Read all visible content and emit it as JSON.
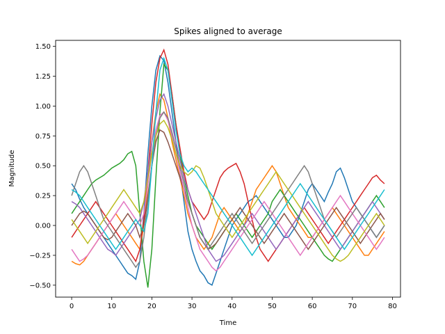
{
  "chart_data": {
    "type": "line",
    "title": "Spikes aligned to average",
    "xlabel": "Time",
    "ylabel": "Magnitude",
    "xlim": [
      -4,
      82
    ],
    "ylim": [
      -0.6,
      1.55
    ],
    "xticks": [
      0,
      10,
      20,
      30,
      40,
      50,
      60,
      70,
      80
    ],
    "xtick_labels": [
      "0",
      "10",
      "20",
      "30",
      "40",
      "50",
      "60",
      "70",
      "80"
    ],
    "yticks": [
      -0.5,
      -0.25,
      0.0,
      0.25,
      0.5,
      0.75,
      1.0,
      1.25,
      1.5
    ],
    "ytick_labels": [
      "−0.50",
      "−0.25",
      "0.00",
      "0.25",
      "0.50",
      "0.75",
      "1.00",
      "1.25",
      "1.50"
    ],
    "grid": false,
    "legend": "none",
    "x": [
      0,
      1,
      2,
      3,
      4,
      5,
      6,
      7,
      8,
      9,
      10,
      11,
      12,
      13,
      14,
      15,
      16,
      17,
      18,
      19,
      20,
      21,
      22,
      23,
      24,
      25,
      26,
      27,
      28,
      29,
      30,
      31,
      32,
      33,
      34,
      35,
      36,
      37,
      38,
      39,
      40,
      41,
      42,
      43,
      44,
      45,
      46,
      47,
      48,
      49,
      50,
      51,
      52,
      53,
      54,
      55,
      56,
      57,
      58,
      59,
      60,
      61,
      62,
      63,
      64,
      65,
      66,
      67,
      68,
      69,
      70,
      71,
      72,
      73,
      74,
      75,
      76,
      77,
      78
    ],
    "colors": [
      "#1f77b4",
      "#ff7f0e",
      "#2ca02c",
      "#d62728",
      "#9467bd",
      "#8c564b",
      "#e377c2",
      "#7f7f7f",
      "#bcbd22",
      "#17becf"
    ],
    "series": [
      {
        "values": [
          0.35,
          0.3,
          0.22,
          0.15,
          0.1,
          0.05,
          0.0,
          -0.05,
          -0.1,
          -0.15,
          -0.2,
          -0.25,
          -0.3,
          -0.35,
          -0.4,
          -0.42,
          -0.45,
          -0.3,
          0.1,
          0.6,
          1.0,
          1.3,
          1.42,
          1.38,
          1.2,
          0.95,
          0.7,
          0.45,
          0.2,
          -0.05,
          -0.2,
          -0.3,
          -0.38,
          -0.42,
          -0.48,
          -0.5,
          -0.4,
          -0.3,
          -0.2,
          -0.1,
          0.0,
          0.05,
          0.1,
          0.15,
          0.2,
          0.22,
          0.25,
          0.2,
          0.15,
          0.1,
          0.05,
          0.0,
          -0.05,
          -0.1,
          -0.1,
          -0.05,
          0.0,
          0.1,
          0.2,
          0.3,
          0.35,
          0.3,
          0.25,
          0.2,
          0.28,
          0.35,
          0.45,
          0.48,
          0.4,
          0.3,
          0.2,
          0.15,
          0.1,
          0.05,
          0.0,
          -0.05,
          -0.1,
          -0.05,
          0.0
        ]
      },
      {
        "values": [
          -0.3,
          -0.32,
          -0.33,
          -0.3,
          -0.25,
          -0.2,
          -0.15,
          -0.1,
          -0.05,
          0.0,
          0.05,
          0.1,
          0.05,
          0.0,
          -0.05,
          -0.1,
          -0.15,
          -0.2,
          0.0,
          0.35,
          0.7,
          0.95,
          1.1,
          1.05,
          0.9,
          0.7,
          0.55,
          0.4,
          0.25,
          0.1,
          0.0,
          -0.1,
          -0.15,
          -0.2,
          -0.15,
          -0.1,
          0.0,
          0.1,
          0.15,
          0.1,
          0.05,
          0.0,
          -0.05,
          0.0,
          0.1,
          0.2,
          0.3,
          0.35,
          0.4,
          0.45,
          0.5,
          0.45,
          0.35,
          0.25,
          0.15,
          0.1,
          0.05,
          0.0,
          -0.05,
          -0.1,
          -0.1,
          -0.05,
          0.0,
          0.05,
          0.1,
          0.15,
          0.1,
          0.05,
          0.0,
          -0.05,
          -0.1,
          -0.15,
          -0.2,
          -0.25,
          -0.25,
          -0.2,
          -0.15,
          -0.1,
          -0.05
        ]
      },
      {
        "values": [
          0.1,
          0.15,
          0.2,
          0.25,
          0.3,
          0.35,
          0.38,
          0.4,
          0.42,
          0.45,
          0.48,
          0.5,
          0.52,
          0.55,
          0.6,
          0.62,
          0.5,
          0.1,
          -0.3,
          -0.52,
          -0.2,
          0.4,
          0.95,
          1.35,
          1.3,
          1.1,
          0.85,
          0.6,
          0.4,
          0.25,
          0.1,
          0.0,
          -0.05,
          -0.1,
          -0.15,
          -0.2,
          -0.15,
          -0.1,
          -0.05,
          0.0,
          0.05,
          0.1,
          0.05,
          0.0,
          -0.05,
          -0.1,
          -0.05,
          0.0,
          0.05,
          0.1,
          0.2,
          0.25,
          0.3,
          0.25,
          0.2,
          0.15,
          0.1,
          0.05,
          0.0,
          -0.05,
          -0.1,
          -0.15,
          -0.2,
          -0.25,
          -0.28,
          -0.3,
          -0.25,
          -0.2,
          -0.15,
          -0.1,
          -0.05,
          0.0,
          0.05,
          0.1,
          0.15,
          0.2,
          0.25,
          0.2,
          0.15
        ]
      },
      {
        "values": [
          -0.1,
          -0.05,
          0.0,
          0.05,
          0.1,
          0.15,
          0.2,
          0.15,
          0.1,
          0.05,
          0.0,
          -0.05,
          -0.1,
          -0.15,
          -0.2,
          -0.25,
          -0.3,
          -0.2,
          0.05,
          0.45,
          0.85,
          1.2,
          1.4,
          1.47,
          1.35,
          1.1,
          0.85,
          0.65,
          0.45,
          0.3,
          0.2,
          0.15,
          0.1,
          0.05,
          0.1,
          0.2,
          0.3,
          0.4,
          0.45,
          0.48,
          0.5,
          0.52,
          0.45,
          0.35,
          0.2,
          0.05,
          -0.1,
          -0.2,
          -0.25,
          -0.3,
          -0.25,
          -0.2,
          -0.15,
          -0.1,
          -0.05,
          0.0,
          0.05,
          0.1,
          0.15,
          0.1,
          0.05,
          0.0,
          -0.05,
          -0.1,
          -0.15,
          -0.1,
          -0.05,
          0.0,
          0.05,
          0.1,
          0.15,
          0.2,
          0.25,
          0.3,
          0.35,
          0.4,
          0.42,
          0.38,
          0.35
        ]
      },
      {
        "values": [
          0.2,
          0.18,
          0.15,
          0.1,
          0.05,
          0.0,
          -0.05,
          -0.1,
          -0.15,
          -0.2,
          -0.22,
          -0.25,
          -0.2,
          -0.15,
          -0.1,
          -0.05,
          0.0,
          0.05,
          0.2,
          0.45,
          0.7,
          0.9,
          1.05,
          1.1,
          1.0,
          0.85,
          0.7,
          0.55,
          0.4,
          0.3,
          0.2,
          0.1,
          0.0,
          -0.1,
          -0.2,
          -0.25,
          -0.3,
          -0.28,
          -0.25,
          -0.2,
          -0.15,
          -0.1,
          -0.05,
          0.0,
          0.05,
          0.1,
          0.05,
          0.0,
          -0.05,
          -0.1,
          -0.15,
          -0.2,
          -0.15,
          -0.1,
          -0.05,
          0.0,
          0.05,
          0.1,
          0.15,
          0.2,
          0.15,
          0.1,
          0.05,
          0.0,
          -0.05,
          -0.1,
          -0.15,
          -0.2,
          -0.15,
          -0.1,
          -0.05,
          0.0,
          0.05,
          0.1,
          0.15,
          0.2,
          0.15,
          0.1,
          0.05
        ]
      },
      {
        "values": [
          0.0,
          0.05,
          0.1,
          0.12,
          0.1,
          0.05,
          0.0,
          -0.05,
          -0.1,
          -0.12,
          -0.1,
          -0.05,
          0.0,
          0.05,
          0.1,
          0.05,
          0.0,
          -0.1,
          0.0,
          0.25,
          0.5,
          0.7,
          0.8,
          0.78,
          0.7,
          0.6,
          0.5,
          0.4,
          0.3,
          0.2,
          0.1,
          0.0,
          -0.1,
          -0.15,
          -0.2,
          -0.18,
          -0.15,
          -0.1,
          -0.05,
          0.0,
          0.05,
          0.1,
          0.15,
          0.1,
          0.05,
          0.0,
          -0.05,
          -0.1,
          -0.15,
          -0.1,
          -0.05,
          0.0,
          0.05,
          0.1,
          0.05,
          0.0,
          -0.05,
          -0.1,
          -0.15,
          -0.2,
          -0.15,
          -0.1,
          -0.05,
          0.0,
          0.05,
          0.1,
          0.15,
          0.1,
          0.05,
          0.0,
          -0.05,
          -0.1,
          -0.15,
          -0.1,
          -0.05,
          0.0,
          0.05,
          0.1,
          0.05
        ]
      },
      {
        "values": [
          -0.2,
          -0.25,
          -0.3,
          -0.28,
          -0.25,
          -0.2,
          -0.15,
          -0.1,
          -0.05,
          0.0,
          0.05,
          0.1,
          0.15,
          0.2,
          0.15,
          0.1,
          0.05,
          0.0,
          0.1,
          0.35,
          0.6,
          0.8,
          0.92,
          0.95,
          0.88,
          0.75,
          0.6,
          0.45,
          0.3,
          0.15,
          0.0,
          -0.1,
          -0.2,
          -0.25,
          -0.3,
          -0.35,
          -0.38,
          -0.35,
          -0.3,
          -0.25,
          -0.2,
          -0.15,
          -0.1,
          -0.05,
          0.0,
          0.05,
          0.1,
          0.15,
          0.2,
          0.15,
          0.1,
          0.05,
          0.0,
          -0.05,
          -0.1,
          -0.15,
          -0.2,
          -0.25,
          -0.2,
          -0.15,
          -0.1,
          -0.05,
          0.0,
          0.05,
          0.1,
          0.15,
          0.2,
          0.25,
          0.2,
          0.15,
          0.1,
          0.05,
          0.0,
          -0.05,
          -0.1,
          -0.15,
          -0.2,
          -0.15,
          -0.1
        ]
      },
      {
        "values": [
          0.25,
          0.35,
          0.45,
          0.5,
          0.45,
          0.35,
          0.25,
          0.15,
          0.05,
          0.0,
          -0.05,
          -0.1,
          -0.15,
          -0.2,
          -0.25,
          -0.3,
          -0.35,
          -0.3,
          -0.1,
          0.2,
          0.5,
          0.75,
          0.9,
          0.95,
          0.9,
          0.78,
          0.65,
          0.5,
          0.35,
          0.2,
          0.1,
          0.0,
          -0.1,
          -0.15,
          -0.2,
          -0.15,
          -0.1,
          -0.05,
          0.0,
          0.05,
          0.1,
          0.05,
          0.0,
          -0.05,
          -0.1,
          -0.15,
          -0.1,
          -0.05,
          0.0,
          0.05,
          0.1,
          0.15,
          0.2,
          0.25,
          0.3,
          0.35,
          0.4,
          0.45,
          0.5,
          0.45,
          0.35,
          0.25,
          0.15,
          0.05,
          0.0,
          -0.05,
          -0.1,
          -0.05,
          0.0,
          0.05,
          0.1,
          0.15,
          0.1,
          0.05,
          0.0,
          -0.05,
          -0.1,
          -0.05,
          0.0
        ]
      },
      {
        "values": [
          0.05,
          0.0,
          -0.05,
          -0.1,
          -0.15,
          -0.1,
          -0.05,
          0.0,
          0.05,
          0.1,
          0.15,
          0.2,
          0.25,
          0.3,
          0.25,
          0.2,
          0.15,
          0.1,
          0.2,
          0.4,
          0.6,
          0.75,
          0.85,
          0.88,
          0.82,
          0.72,
          0.6,
          0.5,
          0.45,
          0.42,
          0.45,
          0.5,
          0.48,
          0.4,
          0.3,
          0.2,
          0.1,
          0.05,
          0.0,
          -0.05,
          -0.1,
          -0.05,
          0.0,
          0.05,
          0.1,
          0.15,
          0.2,
          0.25,
          0.3,
          0.35,
          0.4,
          0.45,
          0.4,
          0.35,
          0.3,
          0.25,
          0.2,
          0.15,
          0.1,
          0.05,
          0.0,
          -0.05,
          -0.1,
          -0.15,
          -0.2,
          -0.25,
          -0.28,
          -0.3,
          -0.28,
          -0.25,
          -0.2,
          -0.15,
          -0.1,
          -0.05,
          0.0,
          0.05,
          0.1,
          0.05,
          0.0
        ]
      },
      {
        "values": [
          0.3,
          0.28,
          0.25,
          0.2,
          0.15,
          0.1,
          0.05,
          0.0,
          -0.05,
          -0.1,
          -0.15,
          -0.2,
          -0.15,
          -0.1,
          -0.05,
          0.0,
          0.05,
          0.0,
          -0.05,
          0.1,
          0.5,
          0.95,
          1.3,
          1.4,
          1.3,
          1.05,
          0.8,
          0.6,
          0.5,
          0.45,
          0.48,
          0.45,
          0.4,
          0.35,
          0.3,
          0.25,
          0.2,
          0.15,
          0.1,
          0.05,
          0.0,
          -0.05,
          -0.1,
          -0.15,
          -0.2,
          -0.25,
          -0.2,
          -0.15,
          -0.1,
          -0.05,
          0.0,
          0.05,
          0.1,
          0.15,
          0.2,
          0.25,
          0.3,
          0.35,
          0.3,
          0.25,
          0.2,
          0.15,
          0.1,
          0.05,
          0.0,
          -0.05,
          -0.1,
          -0.15,
          -0.2,
          -0.15,
          -0.1,
          -0.05,
          0.0,
          0.05,
          0.1,
          0.15,
          0.2,
          0.25,
          0.3
        ]
      }
    ]
  }
}
